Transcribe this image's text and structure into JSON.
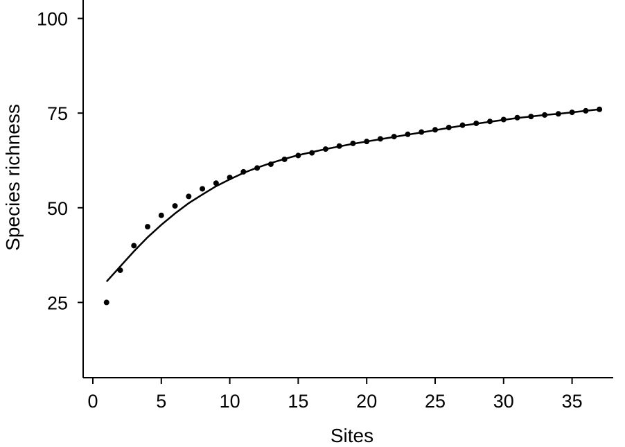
{
  "chart_data": {
    "type": "scatter",
    "title": "",
    "xlabel": "Sites",
    "ylabel": "Species richness",
    "xlim": [
      0,
      38
    ],
    "ylim": [
      5,
      105
    ],
    "xticks": [
      0,
      5,
      10,
      15,
      20,
      25,
      30,
      35
    ],
    "yticks": [
      25,
      50,
      75,
      100
    ],
    "grid": false,
    "legend": "none",
    "colors": {
      "points": "#000000",
      "fit": "#000000",
      "axes": "#000000"
    },
    "series": [
      {
        "type": "scatter",
        "x": [
          1,
          2,
          3,
          4,
          5,
          6,
          7,
          8,
          9,
          10,
          11,
          12,
          13,
          14,
          15,
          16,
          17,
          18,
          19,
          20,
          21,
          22,
          23,
          24,
          25,
          26,
          27,
          28,
          29,
          30,
          31,
          32,
          33,
          34,
          35,
          36,
          37
        ],
        "y": [
          25,
          33.5,
          40,
          45,
          48,
          50.5,
          53,
          55,
          56.5,
          58,
          59.5,
          60.5,
          61.5,
          62.8,
          63.8,
          64.5,
          65.5,
          66.3,
          67,
          67.5,
          68.2,
          68.8,
          69.4,
          70,
          70.6,
          71.2,
          71.8,
          72.3,
          72.8,
          73.3,
          73.8,
          74.1,
          74.5,
          74.8,
          75.2,
          75.6,
          76
        ]
      },
      {
        "type": "line",
        "x": [
          1,
          2,
          3,
          4,
          5,
          6,
          7,
          8,
          9,
          10,
          11,
          12,
          13,
          14,
          15,
          16,
          17,
          18,
          19,
          20,
          21,
          22,
          23,
          24,
          25,
          26,
          27,
          28,
          29,
          30,
          31,
          32,
          33,
          34,
          35,
          36,
          37
        ],
        "y": [
          30.5,
          34.5,
          38.5,
          42.2,
          45.5,
          48.5,
          51.2,
          53.5,
          55.7,
          57.5,
          59.2,
          60.6,
          61.8,
          62.9,
          63.9,
          64.7,
          65.5,
          66.2,
          66.9,
          67.5,
          68.1,
          68.7,
          69.3,
          69.9,
          70.5,
          71.1,
          71.7,
          72.2,
          72.7,
          73.2,
          73.7,
          74.1,
          74.5,
          74.8,
          75.2,
          75.6,
          76
        ]
      }
    ]
  }
}
